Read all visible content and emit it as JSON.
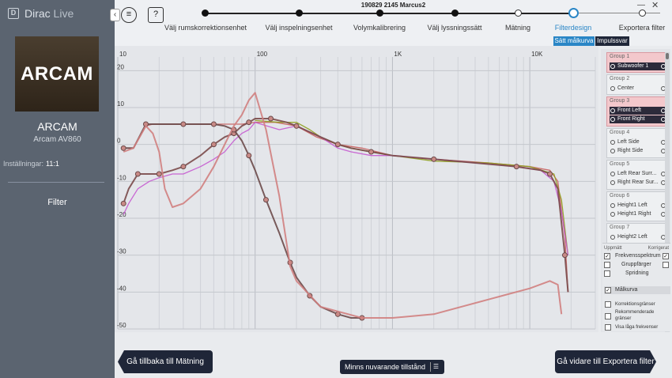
{
  "app": {
    "name_bold": "Dirac",
    "name_light": " Live",
    "logo_glyph": "D"
  },
  "sidebar": {
    "brand_logo_text": "ARCAM",
    "device_name": "ARCAM",
    "device_model": "Arcam AV860",
    "settings_label": "Inställningar:",
    "settings_value": "11:1",
    "filter_label": "Filter"
  },
  "header": {
    "project_title": "190829 2145 Marcus2",
    "collapse_glyph": "‹",
    "menu_glyph": "≡",
    "help_glyph": "?",
    "minimize_glyph": "—",
    "close_glyph": "✕"
  },
  "steps": [
    {
      "label": "Välj rumskorrektionsenhet",
      "state": "done"
    },
    {
      "label": "Välj inspelningsenhet",
      "state": "done"
    },
    {
      "label": "Volymkalibrering",
      "state": "done"
    },
    {
      "label": "Välj lyssningssätt",
      "state": "done"
    },
    {
      "label": "Mätning",
      "state": "open"
    },
    {
      "label": "Filterdesign",
      "state": "active"
    },
    {
      "label": "Exportera filter",
      "state": "open"
    }
  ],
  "subtabs": {
    "target_curve": "Sätt målkurva",
    "impulse_response": "Impulssvar"
  },
  "chart_data": {
    "type": "line",
    "x_scale": "log",
    "xlim": [
      10,
      30000
    ],
    "ylim": [
      -50,
      22
    ],
    "x_ticks": [
      "10",
      "100",
      "1K",
      "10K"
    ],
    "y_ticks": [
      "20",
      "10",
      "0",
      "-10",
      "-20",
      "-30",
      "-40",
      "-50"
    ],
    "grid": true,
    "series": [
      {
        "color": "#c9605f",
        "points": [
          [
            11,
            -1
          ],
          [
            13,
            -1
          ],
          [
            16,
            5
          ],
          [
            18,
            5.5
          ],
          [
            22,
            5.5
          ],
          [
            30,
            5.5
          ],
          [
            50,
            5.5
          ],
          [
            80,
            5.5
          ],
          [
            100,
            6
          ],
          [
            140,
            6
          ],
          [
            200,
            5
          ],
          [
            280,
            2
          ],
          [
            400,
            0
          ],
          [
            600,
            -1
          ],
          [
            1000,
            -3
          ],
          [
            2000,
            -4
          ],
          [
            5000,
            -5
          ],
          [
            10000,
            -6
          ],
          [
            14000,
            -7
          ],
          [
            16000,
            -10
          ],
          [
            18000,
            -25
          ],
          [
            19000,
            -40
          ]
        ]
      },
      {
        "color": "#8f9e1e",
        "points": [
          [
            100,
            6.5
          ],
          [
            150,
            6
          ],
          [
            200,
            6
          ],
          [
            250,
            4
          ],
          [
            300,
            2
          ],
          [
            400,
            0
          ],
          [
            500,
            -1
          ],
          [
            700,
            -2
          ],
          [
            1000,
            -3
          ],
          [
            2000,
            -4.5
          ],
          [
            5000,
            -5
          ],
          [
            10000,
            -6
          ],
          [
            15000,
            -8
          ],
          [
            17000,
            -15
          ],
          [
            19000,
            -30
          ]
        ]
      },
      {
        "color": "#c55ad0",
        "points": [
          [
            11,
            -19
          ],
          [
            12,
            -16
          ],
          [
            14,
            -12
          ],
          [
            17,
            -10
          ],
          [
            20,
            -9
          ],
          [
            25,
            -8
          ],
          [
            30,
            -8
          ],
          [
            40,
            -6
          ],
          [
            50,
            -4
          ],
          [
            60,
            -2
          ],
          [
            70,
            1
          ],
          [
            80,
            3
          ],
          [
            90,
            4
          ],
          [
            100,
            6
          ],
          [
            150,
            4
          ],
          [
            200,
            5
          ],
          [
            300,
            2
          ],
          [
            400,
            -1
          ],
          [
            500,
            -2
          ],
          [
            700,
            -3
          ],
          [
            1000,
            -3
          ],
          [
            2000,
            -4
          ],
          [
            4000,
            -5
          ],
          [
            8000,
            -6
          ],
          [
            12000,
            -7
          ],
          [
            15000,
            -10
          ],
          [
            17000,
            -18
          ],
          [
            19000,
            -30
          ]
        ]
      },
      {
        "color": "#7a4a4a",
        "points": [
          [
            11,
            -16
          ],
          [
            12,
            -12
          ],
          [
            14,
            -8
          ],
          [
            17,
            -8
          ],
          [
            20,
            -8
          ],
          [
            25,
            -7
          ],
          [
            30,
            -6
          ],
          [
            40,
            -3
          ],
          [
            50,
            0
          ],
          [
            60,
            2
          ],
          [
            70,
            3
          ],
          [
            80,
            5
          ],
          [
            90,
            6
          ],
          [
            100,
            7
          ],
          [
            130,
            7
          ],
          [
            170,
            6
          ],
          [
            200,
            5
          ],
          [
            300,
            2
          ],
          [
            400,
            0
          ],
          [
            500,
            -1
          ],
          [
            700,
            -2
          ],
          [
            1000,
            -3
          ],
          [
            2000,
            -4
          ],
          [
            4000,
            -5
          ],
          [
            8000,
            -6
          ],
          [
            12000,
            -7
          ],
          [
            14000,
            -8
          ],
          [
            16000,
            -12
          ],
          [
            18000,
            -30
          ],
          [
            19000,
            -40
          ]
        ]
      },
      {
        "color": "#6b4a4a",
        "points": [
          [
            11,
            -1
          ],
          [
            13,
            -1
          ],
          [
            16,
            5.5
          ],
          [
            20,
            5.5
          ],
          [
            30,
            5.5
          ],
          [
            40,
            5.5
          ],
          [
            50,
            5.5
          ],
          [
            60,
            5
          ],
          [
            70,
            4
          ],
          [
            80,
            1
          ],
          [
            90,
            -3
          ],
          [
            100,
            -7
          ],
          [
            120,
            -15
          ],
          [
            150,
            -24
          ],
          [
            180,
            -32
          ],
          [
            200,
            -36
          ],
          [
            250,
            -41
          ],
          [
            300,
            -44
          ],
          [
            400,
            -46
          ],
          [
            500,
            -47
          ],
          [
            600,
            -47
          ]
        ]
      },
      {
        "color": "#d08080",
        "points": [
          [
            11,
            -2
          ],
          [
            13,
            -1
          ],
          [
            16,
            5
          ],
          [
            18,
            3
          ],
          [
            20,
            -2
          ],
          [
            22,
            -12
          ],
          [
            25,
            -17
          ],
          [
            30,
            -16
          ],
          [
            40,
            -12
          ],
          [
            50,
            -6
          ],
          [
            60,
            0
          ],
          [
            70,
            5
          ],
          [
            80,
            8
          ],
          [
            90,
            12
          ],
          [
            100,
            14
          ],
          [
            120,
            4
          ],
          [
            150,
            -14
          ],
          [
            180,
            -33
          ],
          [
            200,
            -37
          ],
          [
            300,
            -44
          ],
          [
            600,
            -47
          ],
          [
            1000,
            -47
          ],
          [
            2000,
            -46
          ],
          [
            5000,
            -42
          ],
          [
            10000,
            -39
          ],
          [
            14000,
            -37
          ],
          [
            16000,
            -38
          ],
          [
            17000,
            -46
          ]
        ]
      }
    ]
  },
  "groups": [
    {
      "title": "Group 1",
      "selected": true,
      "channels": [
        {
          "name": "Subwoofer 1",
          "dark": true
        }
      ]
    },
    {
      "title": "Group 2",
      "selected": false,
      "channels": [
        {
          "name": "Center",
          "dark": false
        }
      ]
    },
    {
      "title": "Group 3",
      "selected": true,
      "channels": [
        {
          "name": "Front Left",
          "dark": true
        },
        {
          "name": "Front Right",
          "dark": true
        }
      ]
    },
    {
      "title": "Group 4",
      "selected": false,
      "channels": [
        {
          "name": "Left Side",
          "dark": false
        },
        {
          "name": "Right Side",
          "dark": false
        }
      ]
    },
    {
      "title": "Group 5",
      "selected": false,
      "channels": [
        {
          "name": "Left Rear Surr...",
          "dark": false
        },
        {
          "name": "Right Rear Sur...",
          "dark": false
        }
      ]
    },
    {
      "title": "Group 6",
      "selected": false,
      "channels": [
        {
          "name": "Height1 Left",
          "dark": false
        },
        {
          "name": "Height1 Right",
          "dark": false
        }
      ]
    },
    {
      "title": "Group 7",
      "selected": false,
      "channels": [
        {
          "name": "Height2 Left",
          "dark": false
        }
      ]
    }
  ],
  "legend": {
    "measured_header": "Uppmätt",
    "corrected_header": "Korrigerat",
    "freq_spectrum": "Frekvensspektrum",
    "group_delay": "Gruppfärger",
    "spread": "Spridning",
    "target_curve": "Målkurva",
    "correction_limits": "Korrektionsgränser",
    "recommended_limits": "Rekommenderade gränser",
    "show_low_freq": "Visa låga frekvenser"
  },
  "footer": {
    "back_label": "Gå tillbaka till Mätning",
    "forward_label": "Gå vidare till Exportera filter",
    "save_state_label": "Minns nuvarande tillstånd",
    "save_state_icon": "☰"
  }
}
